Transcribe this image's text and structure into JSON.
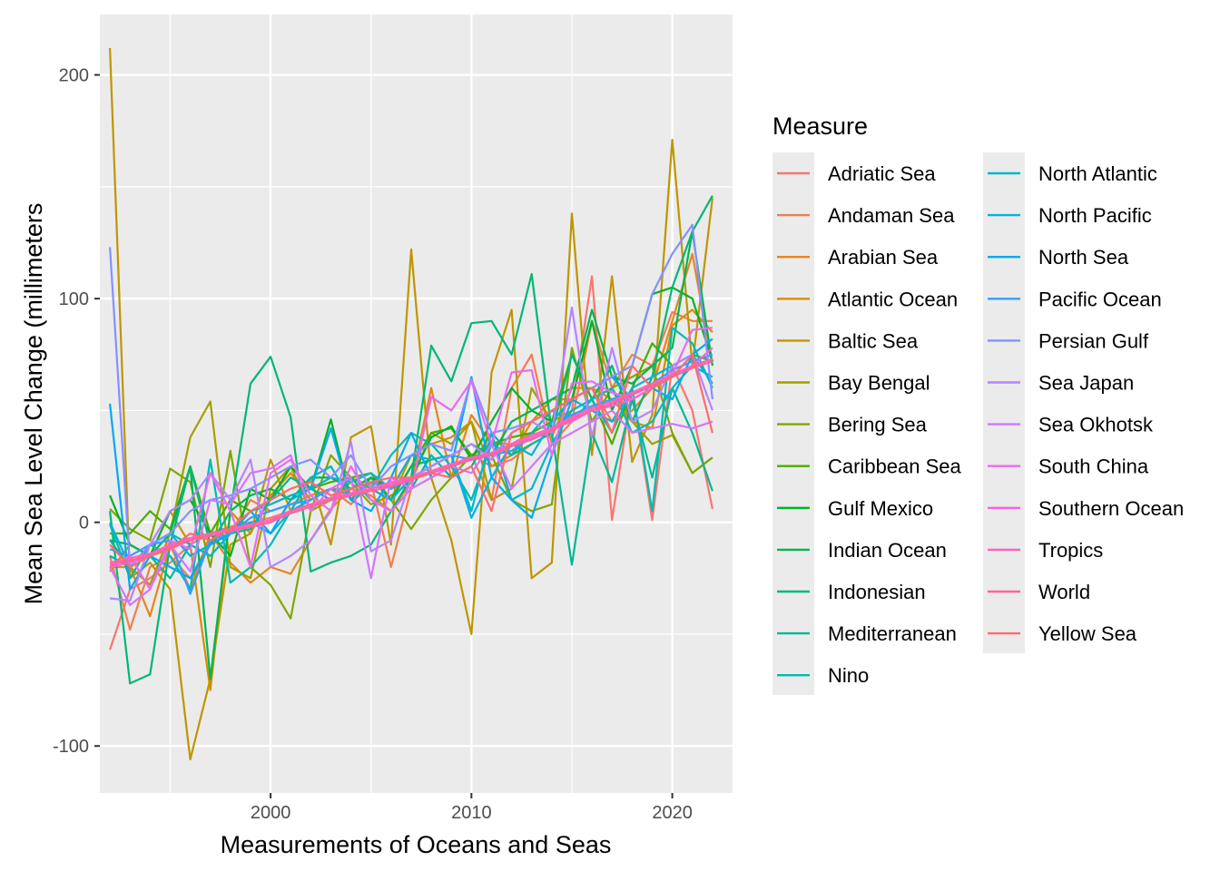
{
  "chart_data": {
    "type": "line",
    "xlabel": "Measurements of Oceans and Seas",
    "ylabel": "Mean Sea Level Change (millimeters",
    "xlim": [
      1991.5,
      2023
    ],
    "ylim": [
      -121,
      227
    ],
    "x_ticks": [
      2000,
      2010,
      2020
    ],
    "x_tick_labels": [
      "2000",
      "2010",
      "2020"
    ],
    "y_ticks": [
      -100,
      0,
      100,
      200
    ],
    "y_tick_labels": [
      "-100",
      "0",
      "100",
      "200"
    ],
    "grid": true,
    "legend": {
      "title": "Measure",
      "placement": "right",
      "columns": 2
    },
    "x": [
      1992,
      1993,
      1994,
      1995,
      1996,
      1997,
      1998,
      1999,
      2000,
      2001,
      2002,
      2003,
      2004,
      2005,
      2006,
      2007,
      2008,
      2009,
      2010,
      2011,
      2012,
      2013,
      2014,
      2015,
      2016,
      2017,
      2018,
      2019,
      2020,
      2021,
      2022
    ],
    "series": [
      {
        "name": "Adriatic Sea",
        "color": "#F8766D",
        "values": [
          -57,
          -30,
          -25,
          -18,
          -10,
          -5,
          -2,
          0,
          2,
          5,
          8,
          10,
          12,
          15,
          10,
          20,
          22,
          25,
          30,
          25,
          28,
          35,
          40,
          50,
          110,
          1,
          60,
          1,
          70,
          50,
          6
        ]
      },
      {
        "name": "Andaman Sea",
        "color": "#F07E4F",
        "values": [
          -15,
          -48,
          -20,
          -15,
          -25,
          -8,
          -5,
          10,
          5,
          8,
          12,
          15,
          8,
          18,
          -20,
          15,
          20,
          25,
          30,
          10,
          60,
          75,
          35,
          45,
          90,
          60,
          75,
          70,
          94,
          90,
          90
        ]
      },
      {
        "name": "Arabian Sea",
        "color": "#E7851E",
        "values": [
          -20,
          -20,
          -42,
          -10,
          -30,
          -5,
          -18,
          -27,
          -20,
          -23,
          -8,
          6,
          15,
          12,
          5,
          18,
          60,
          20,
          48,
          35,
          35,
          40,
          38,
          60,
          60,
          45,
          50,
          60,
          90,
          120,
          70
        ]
      },
      {
        "name": "Atlantic Ocean",
        "color": "#D58E00",
        "values": [
          -22,
          -10,
          -15,
          5,
          -10,
          -75,
          5,
          -5,
          12,
          22,
          10,
          15,
          15,
          20,
          10,
          30,
          35,
          38,
          45,
          25,
          30,
          45,
          55,
          55,
          60,
          55,
          45,
          42,
          88,
          95,
          85
        ]
      },
      {
        "name": "Baltic Sea",
        "color": "#BE9600",
        "values": [
          212,
          -25,
          -18,
          -30,
          -106,
          -70,
          -10,
          -5,
          28,
          5,
          20,
          -10,
          38,
          43,
          -10,
          122,
          20,
          -8,
          -50,
          67,
          95,
          -25,
          -18,
          138,
          30,
          110,
          27,
          48,
          171,
          70,
          145
        ]
      },
      {
        "name": "Bay Bengal",
        "color": "#A39E00",
        "values": [
          -15,
          -20,
          -28,
          -5,
          38,
          54,
          -20,
          -25,
          15,
          25,
          5,
          10,
          18,
          8,
          12,
          18,
          40,
          35,
          45,
          10,
          15,
          60,
          45,
          50,
          55,
          60,
          45,
          35,
          39,
          22,
          29
        ]
      },
      {
        "name": "Bering Sea",
        "color": "#7FA600",
        "values": [
          6,
          -3,
          -8,
          24,
          18,
          -20,
          32,
          -20,
          -28,
          -43,
          5,
          30,
          20,
          15,
          10,
          -3,
          10,
          20,
          30,
          30,
          10,
          5,
          8,
          78,
          45,
          60,
          65,
          70,
          40,
          22,
          29
        ]
      },
      {
        "name": "Caribbean Sea",
        "color": "#4BAC00",
        "values": [
          -5,
          -5,
          5,
          -3,
          25,
          -5,
          10,
          5,
          8,
          12,
          15,
          18,
          20,
          22,
          10,
          25,
          40,
          42,
          30,
          35,
          38,
          40,
          45,
          75,
          55,
          35,
          60,
          80,
          70,
          75,
          72
        ]
      },
      {
        "name": "Gulf Mexico",
        "color": "#00B125",
        "values": [
          12,
          -10,
          -15,
          5,
          10,
          -5,
          -15,
          15,
          10,
          25,
          15,
          46,
          10,
          20,
          15,
          20,
          38,
          43,
          28,
          45,
          60,
          50,
          45,
          55,
          90,
          50,
          70,
          102,
          105,
          100,
          72
        ]
      },
      {
        "name": "Indian Ocean",
        "color": "#00B451",
        "values": [
          -8,
          -10,
          -15,
          -5,
          25,
          -70,
          5,
          12,
          15,
          10,
          20,
          20,
          15,
          20,
          10,
          25,
          28,
          30,
          35,
          30,
          45,
          50,
          55,
          60,
          95,
          65,
          62,
          70,
          78,
          130,
          70
        ]
      },
      {
        "name": "Indonesian",
        "color": "#00B774",
        "values": [
          5,
          -72,
          -68,
          -10,
          25,
          -10,
          5,
          62,
          74,
          47,
          -22,
          -18,
          -15,
          -10,
          5,
          20,
          79,
          63,
          89,
          90,
          75,
          111,
          40,
          75,
          55,
          70,
          45,
          65,
          105,
          130,
          146
        ]
      },
      {
        "name": "Mediterranean",
        "color": "#00B894",
        "values": [
          -8,
          -20,
          -15,
          -25,
          -10,
          -15,
          -5,
          -3,
          10,
          20,
          15,
          10,
          20,
          10,
          5,
          15,
          30,
          20,
          25,
          40,
          30,
          35,
          40,
          -19,
          40,
          18,
          55,
          20,
          60,
          40,
          14
        ]
      },
      {
        "name": "Nino",
        "color": "#00BAB1",
        "values": [
          -1,
          -25,
          -10,
          -15,
          -30,
          28,
          -27,
          -20,
          -10,
          5,
          20,
          25,
          10,
          15,
          30,
          40,
          35,
          25,
          10,
          35,
          30,
          40,
          50,
          45,
          55,
          40,
          60,
          5,
          87,
          80,
          60
        ]
      },
      {
        "name": "North Atlantic",
        "color": "#00B7CB",
        "values": [
          -15,
          -20,
          -10,
          -5,
          -10,
          -15,
          -5,
          5,
          8,
          12,
          15,
          20,
          18,
          22,
          15,
          30,
          28,
          30,
          5,
          40,
          10,
          15,
          35,
          50,
          55,
          60,
          40,
          45,
          60,
          70,
          65
        ]
      },
      {
        "name": "North Pacific",
        "color": "#00B2E2",
        "values": [
          0,
          -20,
          -10,
          -5,
          -15,
          -10,
          -5,
          0,
          -5,
          5,
          10,
          15,
          12,
          15,
          10,
          20,
          25,
          30,
          2,
          20,
          35,
          30,
          45,
          55,
          50,
          45,
          60,
          65,
          70,
          75,
          62
        ]
      },
      {
        "name": "North Sea",
        "color": "#00A9F4",
        "values": [
          53,
          -30,
          -15,
          -20,
          -25,
          -10,
          -5,
          5,
          -5,
          10,
          15,
          42,
          10,
          5,
          20,
          40,
          20,
          25,
          65,
          20,
          10,
          2,
          30,
          55,
          60,
          65,
          55,
          60,
          55,
          75,
          82
        ]
      },
      {
        "name": "Pacific Ocean",
        "color": "#349EFF",
        "values": [
          -12,
          -15,
          -10,
          -8,
          -32,
          -8,
          -5,
          2,
          5,
          8,
          10,
          15,
          12,
          18,
          15,
          20,
          25,
          30,
          28,
          30,
          32,
          38,
          42,
          48,
          52,
          55,
          58,
          62,
          68,
          72,
          75
        ]
      },
      {
        "name": "Persian Gulf",
        "color": "#8491FF",
        "values": [
          123,
          -20,
          -10,
          -5,
          5,
          10,
          12,
          15,
          20,
          25,
          28,
          20,
          30,
          15,
          25,
          30,
          35,
          32,
          64,
          40,
          42,
          45,
          50,
          55,
          60,
          65,
          70,
          102,
          120,
          133,
          55
        ]
      },
      {
        "name": "Sea Japan",
        "color": "#B385FF",
        "values": [
          -34,
          -35,
          -10,
          5,
          10,
          22,
          10,
          28,
          -20,
          -15,
          -8,
          5,
          36,
          -13,
          -8,
          20,
          25,
          30,
          35,
          28,
          40,
          45,
          40,
          96,
          38,
          78,
          45,
          50,
          70,
          75,
          50
        ]
      },
      {
        "name": "Sea Okhotsk",
        "color": "#D475FF",
        "values": [
          -20,
          -37,
          -30,
          -10,
          -22,
          10,
          8,
          22,
          24,
          30,
          5,
          15,
          20,
          -25,
          20,
          15,
          20,
          25,
          22,
          35,
          15,
          25,
          35,
          40,
          45,
          50,
          40,
          42,
          44,
          42,
          45
        ]
      },
      {
        "name": "South China",
        "color": "#EA6BF1",
        "values": [
          -20,
          -15,
          -30,
          -8,
          -12,
          22,
          5,
          -20,
          22,
          28,
          12,
          5,
          25,
          10,
          5,
          15,
          56,
          50,
          63,
          35,
          67,
          68,
          30,
          62,
          63,
          58,
          55,
          60,
          66,
          86,
          87
        ]
      },
      {
        "name": "Southern Ocean",
        "color": "#F865DB",
        "values": [
          -20,
          -18,
          -15,
          -12,
          -8,
          -5,
          -3,
          -2,
          0,
          5,
          8,
          10,
          12,
          15,
          18,
          20,
          22,
          25,
          28,
          30,
          35,
          38,
          42,
          45,
          50,
          52,
          55,
          60,
          65,
          70,
          78
        ]
      },
      {
        "name": "Tropics",
        "color": "#FF62BC",
        "values": [
          -18,
          -16,
          -14,
          -10,
          -7,
          -5,
          -3,
          -1,
          1,
          5,
          8,
          11,
          13,
          15,
          17,
          20,
          23,
          26,
          29,
          31,
          35,
          39,
          42,
          47,
          51,
          54,
          58,
          62,
          66,
          70,
          73
        ]
      },
      {
        "name": "World",
        "color": "#FF6398",
        "values": [
          -19,
          -17,
          -15,
          -11,
          -8,
          -6,
          -4,
          -2,
          0,
          4,
          7,
          10,
          12,
          14,
          16,
          19,
          22,
          25,
          28,
          30,
          34,
          37,
          41,
          46,
          50,
          53,
          57,
          61,
          65,
          69,
          72
        ]
      },
      {
        "name": "Yellow Sea",
        "color": "#FF6A71",
        "values": [
          -10,
          -20,
          -15,
          -12,
          -5,
          -8,
          -3,
          5,
          10,
          15,
          18,
          12,
          15,
          18,
          20,
          20,
          22,
          20,
          25,
          5,
          40,
          45,
          50,
          55,
          60,
          40,
          70,
          60,
          65,
          75,
          40
        ]
      }
    ]
  }
}
